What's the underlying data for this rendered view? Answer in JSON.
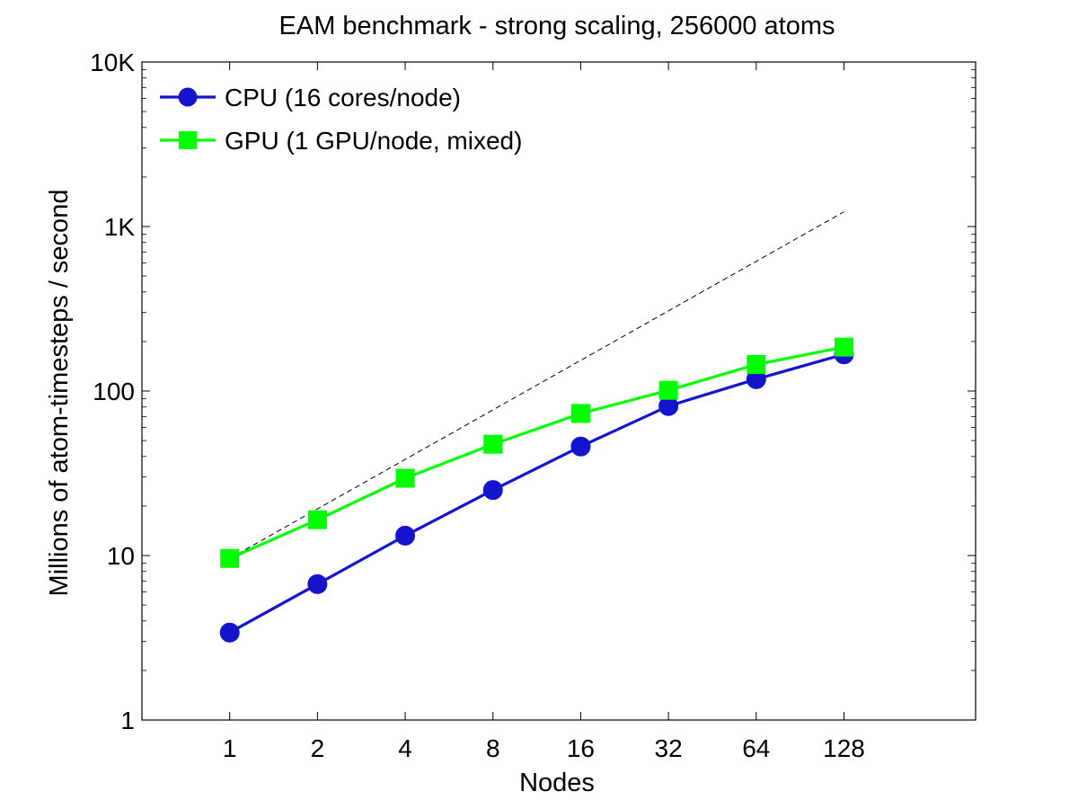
{
  "chart_data": {
    "type": "line",
    "title": "EAM benchmark - strong scaling, 256000 atoms",
    "xlabel": "Nodes",
    "ylabel": "Millions of atom-timesteps / second",
    "x_scale": "log2",
    "y_scale": "log10",
    "x": [
      1,
      2,
      4,
      8,
      16,
      32,
      64,
      128
    ],
    "x_tick_labels": [
      "1",
      "2",
      "4",
      "8",
      "16",
      "32",
      "64",
      "128"
    ],
    "xlim": [
      0.5,
      362
    ],
    "ylim": [
      1,
      10000
    ],
    "y_ticks": [
      1,
      10,
      100,
      1000,
      10000
    ],
    "y_tick_labels": [
      "1",
      "10",
      "100",
      "1K",
      "10K"
    ],
    "grid": false,
    "legend_position": "top-left",
    "series": [
      {
        "name": "CPU (16 cores/node)",
        "color": "#1414cc",
        "marker": "circle",
        "values": [
          3.4,
          6.7,
          13.2,
          25,
          46,
          81,
          118,
          167
        ]
      },
      {
        "name": "GPU (1 GPU/node, mixed)",
        "color": "#00ff00",
        "marker": "square",
        "values": [
          9.6,
          16.5,
          29.5,
          47.5,
          73,
          101,
          145,
          185
        ]
      }
    ],
    "reference_line": {
      "style": "dashed",
      "color": "#000000",
      "x": [
        1,
        128
      ],
      "values": [
        9.6,
        1228.8
      ]
    }
  }
}
